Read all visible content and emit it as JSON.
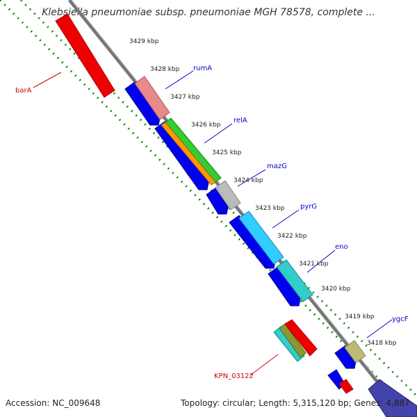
{
  "title": "Klebsiella pneumoniae subsp. pneumoniae MGH 78578, complete ...",
  "footer": {
    "accession": "Accession: NC_009648",
    "summary": "Topology: circular; Length: 5,315,120 bp; Genes: 4,887"
  },
  "colors": {
    "backbone": "#777777",
    "tick": "#1a8a1a",
    "forward_label": "#0000cc",
    "reverse_label": "#cc0000",
    "cds": "#0000ee"
  },
  "scale_labels": [
    "3429 kbp",
    "3428 kbp",
    "3427 kbp",
    "3426 kbp",
    "3425 kbp",
    "3424 kbp",
    "3423 kbp",
    "3422 kbp",
    "3421 kbp",
    "3420 kbp",
    "3419 kbp",
    "3418 kbp"
  ],
  "gene_labels": {
    "barA": "barA",
    "rumA": "rumA",
    "relA": "relA",
    "mazG": "mazG",
    "pyrG": "pyrG",
    "eno": "eno",
    "ygcF": "ygcF",
    "KPN_03122": "KPN_03122"
  }
}
